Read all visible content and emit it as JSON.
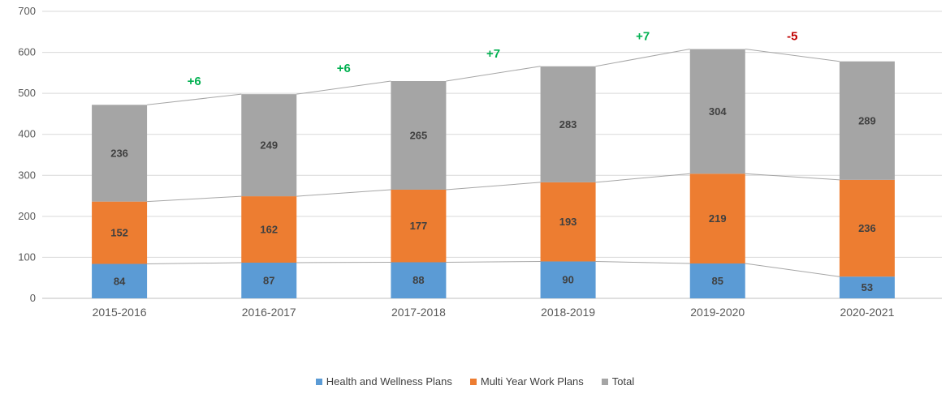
{
  "chart_data": {
    "type": "bar",
    "stacked": true,
    "title": "",
    "xlabel": "",
    "ylabel": "",
    "categories": [
      "2015-2016",
      "2016-2017",
      "2017-2018",
      "2018-2019",
      "2019-2020",
      "2020-2021"
    ],
    "series": [
      {
        "name": "Health and Wellness Plans",
        "color": "#5B9BD5",
        "values": [
          84,
          87,
          88,
          90,
          85,
          53
        ]
      },
      {
        "name": "Multi Year Work Plans",
        "color": "#ED7D31",
        "values": [
          152,
          162,
          177,
          193,
          219,
          236
        ]
      },
      {
        "name": "Total",
        "color": "#A5A5A5",
        "values": [
          236,
          249,
          265,
          283,
          304,
          289
        ]
      }
    ],
    "stack_totals": [
      472,
      498,
      530,
      566,
      608,
      578
    ],
    "annotations": [
      {
        "text": "+6",
        "color": "#00B050",
        "between": [
          0,
          1
        ]
      },
      {
        "text": "+6",
        "color": "#00B050",
        "between": [
          1,
          2
        ]
      },
      {
        "text": "+7",
        "color": "#00B050",
        "between": [
          2,
          3
        ]
      },
      {
        "text": "+7",
        "color": "#00B050",
        "between": [
          3,
          4
        ]
      },
      {
        "text": "-5",
        "color": "#C00000",
        "between": [
          4,
          5
        ]
      }
    ],
    "ylim": [
      0,
      700
    ],
    "ytick_step": 100,
    "grid": true,
    "gridline_color": "#D9D9D9",
    "series_line_color": "#A6A6A6",
    "axis_label_color": "#595959",
    "data_label_color": "#404040",
    "legend_position": "bottom",
    "series_lines": true
  }
}
